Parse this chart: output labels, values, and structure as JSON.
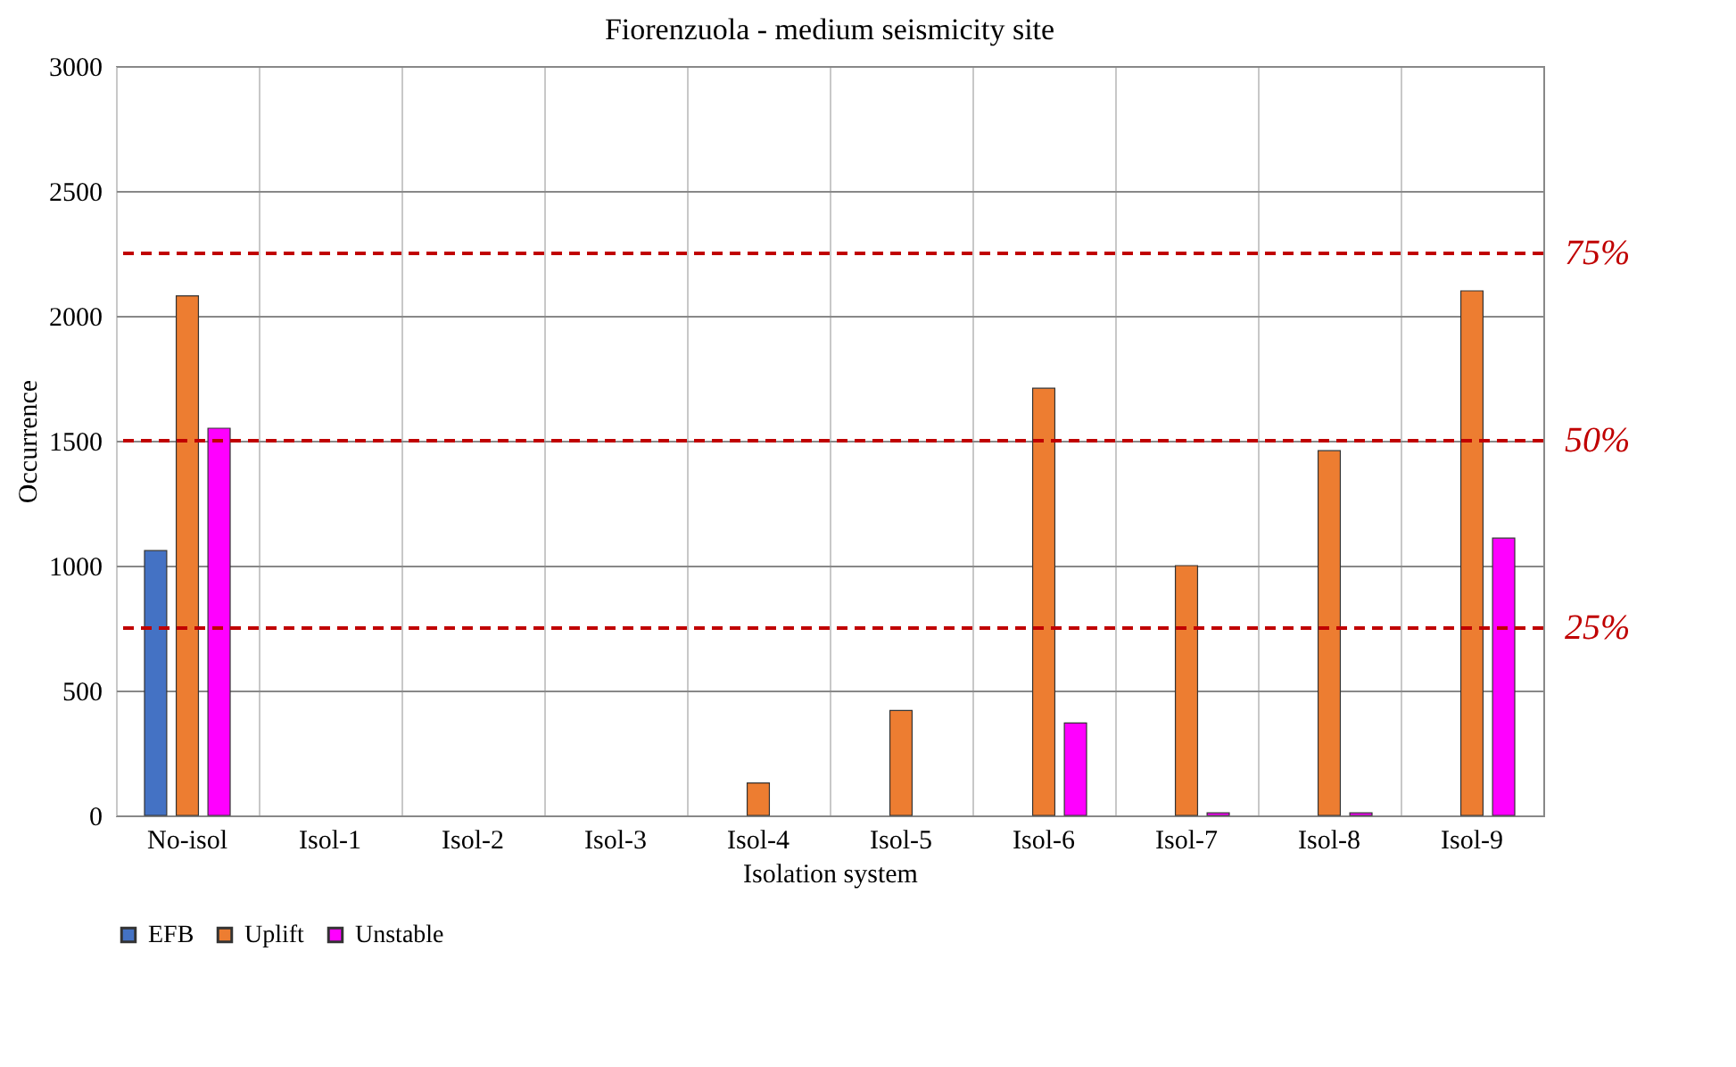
{
  "chart_data": {
    "type": "bar",
    "title": "Fiorenzuola - medium seismicity site",
    "xlabel": "Isolation system",
    "ylabel": "Occurrence",
    "categories": [
      "No-isol",
      "Isol-1",
      "Isol-2",
      "Isol-3",
      "Isol-4",
      "Isol-5",
      "Isol-6",
      "Isol-7",
      "Isol-8",
      "Isol-9"
    ],
    "series": [
      {
        "name": "EFB",
        "color": "#4472c4",
        "values": [
          1060,
          0,
          0,
          0,
          0,
          0,
          0,
          0,
          0,
          0
        ]
      },
      {
        "name": "Uplift",
        "color": "#ed7d31",
        "values": [
          2080,
          0,
          0,
          0,
          130,
          420,
          1710,
          1000,
          1460,
          2100
        ]
      },
      {
        "name": "Unstable",
        "color": "#ff00ff",
        "values": [
          1550,
          0,
          0,
          0,
          0,
          0,
          370,
          10,
          10,
          1110
        ]
      }
    ],
    "ylim": [
      0,
      3000
    ],
    "yticks": [
      0,
      500,
      1000,
      1500,
      2000,
      2500,
      3000
    ],
    "y2lim": [
      0,
      100
    ],
    "grid": true,
    "legend": "bottom",
    "ref_lines": [
      {
        "axis": "y2",
        "value": 75,
        "label": "75%",
        "color": "#c00000",
        "line_style": "dashed"
      },
      {
        "axis": "y2",
        "value": 50,
        "label": "50%",
        "color": "#c00000",
        "line_style": "dashed"
      },
      {
        "axis": "y2",
        "value": 25,
        "label": "25%",
        "color": "#c00000",
        "line_style": "dashed"
      }
    ]
  }
}
